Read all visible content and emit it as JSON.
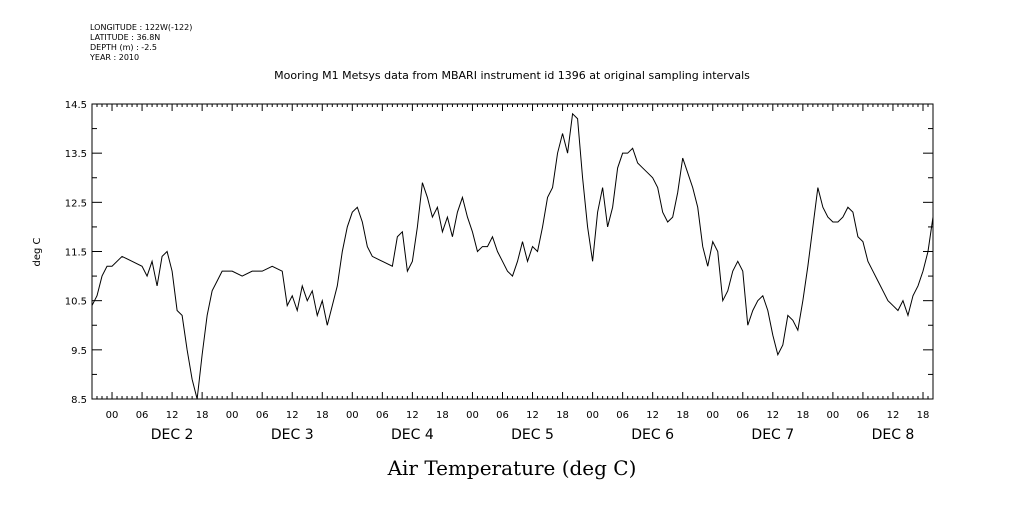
{
  "header": {
    "longitude": "LONGITUDE : 122W(-122)",
    "latitude": "LATITUDE : 36.8N",
    "depth": "DEPTH (m) : -2.5",
    "year": "YEAR : 2010"
  },
  "chart_data": {
    "type": "line",
    "title": "Mooring M1 Metsys data from MBARI instrument id 1396 at original sampling intervals",
    "xlabel": "Air Temperature (deg C)",
    "ylabel": "deg C",
    "ylim": [
      8.5,
      14.5
    ],
    "yticks": [
      "8.5",
      "9.5",
      "10.5",
      "11.5",
      "12.5",
      "13.5",
      "14.5"
    ],
    "xlim_hours": [
      -4,
      164
    ],
    "x_hour_labels": [
      "00",
      "06",
      "12",
      "18",
      "00",
      "06",
      "12",
      "18",
      "00",
      "06",
      "12",
      "18",
      "00",
      "06",
      "12",
      "18",
      "00",
      "06",
      "12",
      "18",
      "00",
      "06",
      "12",
      "18",
      "00",
      "06",
      "12",
      "18"
    ],
    "day_labels": [
      "DEC  2",
      "DEC  3",
      "DEC  4",
      "DEC  5",
      "DEC  6",
      "DEC  7",
      "DEC  8"
    ],
    "grid": false,
    "series": [
      {
        "values": [
          [
            -4,
            10.4
          ],
          [
            -3,
            10.6
          ],
          [
            -2,
            11.0
          ],
          [
            -1,
            11.2
          ],
          [
            0,
            11.2
          ],
          [
            2,
            11.4
          ],
          [
            4,
            11.3
          ],
          [
            6,
            11.2
          ],
          [
            7,
            11.0
          ],
          [
            8,
            11.3
          ],
          [
            9,
            10.8
          ],
          [
            10,
            11.4
          ],
          [
            11,
            11.5
          ],
          [
            12,
            11.1
          ],
          [
            13,
            10.3
          ],
          [
            14,
            10.2
          ],
          [
            15,
            9.5
          ],
          [
            16,
            8.9
          ],
          [
            17,
            8.5
          ],
          [
            18,
            9.4
          ],
          [
            19,
            10.2
          ],
          [
            20,
            10.7
          ],
          [
            21,
            10.9
          ],
          [
            22,
            11.1
          ],
          [
            24,
            11.1
          ],
          [
            26,
            11.0
          ],
          [
            28,
            11.1
          ],
          [
            30,
            11.1
          ],
          [
            32,
            11.2
          ],
          [
            34,
            11.1
          ],
          [
            35,
            10.4
          ],
          [
            36,
            10.6
          ],
          [
            37,
            10.3
          ],
          [
            38,
            10.8
          ],
          [
            39,
            10.5
          ],
          [
            40,
            10.7
          ],
          [
            41,
            10.2
          ],
          [
            42,
            10.5
          ],
          [
            43,
            10.0
          ],
          [
            44,
            10.4
          ],
          [
            45,
            10.8
          ],
          [
            46,
            11.5
          ],
          [
            47,
            12.0
          ],
          [
            48,
            12.3
          ],
          [
            49,
            12.4
          ],
          [
            50,
            12.1
          ],
          [
            51,
            11.6
          ],
          [
            52,
            11.4
          ],
          [
            54,
            11.3
          ],
          [
            56,
            11.2
          ],
          [
            57,
            11.8
          ],
          [
            58,
            11.9
          ],
          [
            59,
            11.1
          ],
          [
            60,
            11.3
          ],
          [
            61,
            12.0
          ],
          [
            62,
            12.9
          ],
          [
            63,
            12.6
          ],
          [
            64,
            12.2
          ],
          [
            65,
            12.4
          ],
          [
            66,
            11.9
          ],
          [
            67,
            12.2
          ],
          [
            68,
            11.8
          ],
          [
            69,
            12.3
          ],
          [
            70,
            12.6
          ],
          [
            71,
            12.2
          ],
          [
            72,
            11.9
          ],
          [
            73,
            11.5
          ],
          [
            74,
            11.6
          ],
          [
            75,
            11.6
          ],
          [
            76,
            11.8
          ],
          [
            77,
            11.5
          ],
          [
            78,
            11.3
          ],
          [
            79,
            11.1
          ],
          [
            80,
            11.0
          ],
          [
            81,
            11.3
          ],
          [
            82,
            11.7
          ],
          [
            83,
            11.3
          ],
          [
            84,
            11.6
          ],
          [
            85,
            11.5
          ],
          [
            86,
            12.0
          ],
          [
            87,
            12.6
          ],
          [
            88,
            12.8
          ],
          [
            89,
            13.5
          ],
          [
            90,
            13.9
          ],
          [
            91,
            13.5
          ],
          [
            92,
            14.3
          ],
          [
            93,
            14.2
          ],
          [
            94,
            13.0
          ],
          [
            95,
            12.0
          ],
          [
            96,
            11.3
          ],
          [
            97,
            12.3
          ],
          [
            98,
            12.8
          ],
          [
            99,
            12.0
          ],
          [
            100,
            12.4
          ],
          [
            101,
            13.2
          ],
          [
            102,
            13.5
          ],
          [
            103,
            13.5
          ],
          [
            104,
            13.6
          ],
          [
            105,
            13.3
          ],
          [
            106,
            13.2
          ],
          [
            107,
            13.1
          ],
          [
            108,
            13.0
          ],
          [
            109,
            12.8
          ],
          [
            110,
            12.3
          ],
          [
            111,
            12.1
          ],
          [
            112,
            12.2
          ],
          [
            113,
            12.7
          ],
          [
            114,
            13.4
          ],
          [
            115,
            13.1
          ],
          [
            116,
            12.8
          ],
          [
            117,
            12.4
          ],
          [
            118,
            11.6
          ],
          [
            119,
            11.2
          ],
          [
            120,
            11.7
          ],
          [
            121,
            11.5
          ],
          [
            122,
            10.5
          ],
          [
            123,
            10.7
          ],
          [
            124,
            11.1
          ],
          [
            125,
            11.3
          ],
          [
            126,
            11.1
          ],
          [
            127,
            10.0
          ],
          [
            128,
            10.3
          ],
          [
            129,
            10.5
          ],
          [
            130,
            10.6
          ],
          [
            131,
            10.3
          ],
          [
            132,
            9.8
          ],
          [
            133,
            9.4
          ],
          [
            134,
            9.6
          ],
          [
            135,
            10.2
          ],
          [
            136,
            10.1
          ],
          [
            137,
            9.9
          ],
          [
            138,
            10.5
          ],
          [
            139,
            11.2
          ],
          [
            140,
            12.0
          ],
          [
            141,
            12.8
          ],
          [
            142,
            12.4
          ],
          [
            143,
            12.2
          ],
          [
            144,
            12.1
          ],
          [
            145,
            12.1
          ],
          [
            146,
            12.2
          ],
          [
            147,
            12.4
          ],
          [
            148,
            12.3
          ],
          [
            149,
            11.8
          ],
          [
            150,
            11.7
          ],
          [
            151,
            11.3
          ],
          [
            152,
            11.1
          ],
          [
            153,
            10.9
          ],
          [
            154,
            10.7
          ],
          [
            155,
            10.5
          ],
          [
            156,
            10.4
          ],
          [
            157,
            10.3
          ],
          [
            158,
            10.5
          ],
          [
            159,
            10.2
          ],
          [
            160,
            10.6
          ],
          [
            161,
            10.8
          ],
          [
            162,
            11.1
          ],
          [
            163,
            11.5
          ],
          [
            164,
            12.2
          ]
        ]
      }
    ]
  }
}
